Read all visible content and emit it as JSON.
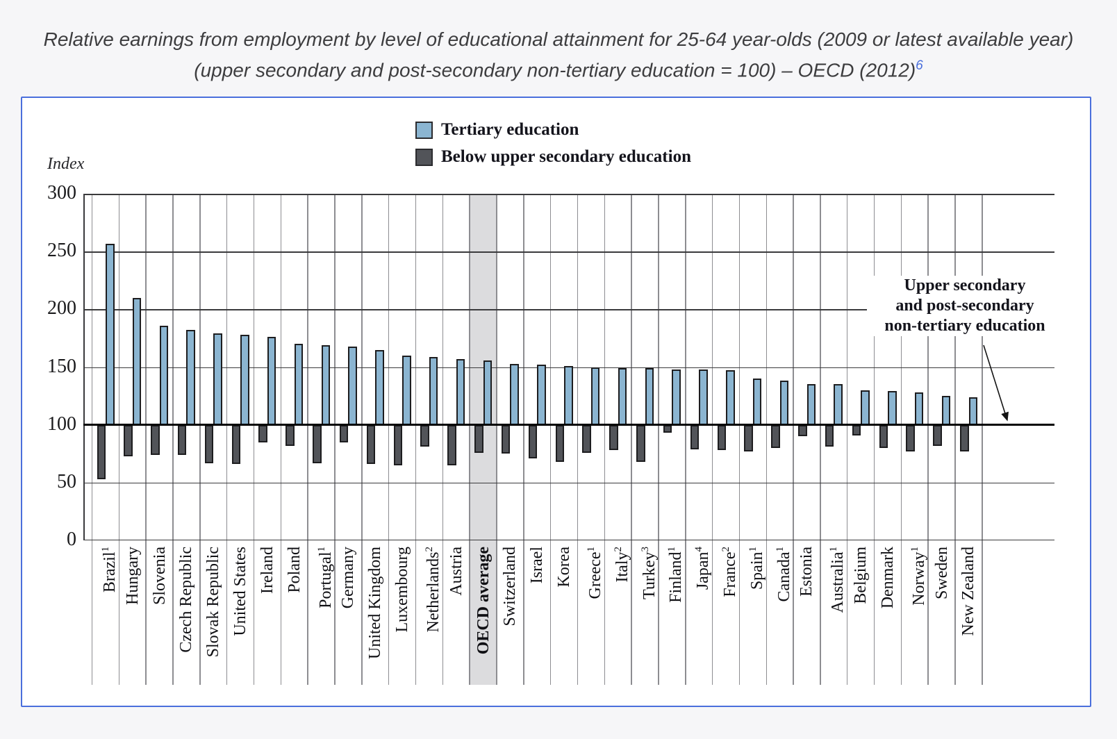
{
  "title": {
    "text": "Relative earnings from employment by level of educational attainment for 25-64 year-olds (2009 or latest available year) (upper secondary and post-secondary non-tertiary education = 100) – OECD (2012)",
    "footnote_marker": "6"
  },
  "chart": {
    "index_label": "Index",
    "legend": [
      {
        "id": "tertiary",
        "label": "Tertiary education"
      },
      {
        "id": "below-upper-secondary",
        "label": "Below upper secondary education"
      }
    ],
    "annotation": {
      "lines": [
        "Upper secondary",
        "and post-secondary",
        "non-tertiary education"
      ]
    }
  },
  "colors": {
    "tertiary_fill": "#8bb5d1",
    "below_fill": "#525459",
    "bar_border": "#1d1d1f",
    "highlight_band": "#dcdcde",
    "box_border": "#4a6fdc",
    "footnote_link": "#4a6fdc"
  },
  "chart_data": {
    "type": "bar",
    "title": "Relative earnings from employment by level of educational attainment, 25-64 year-olds (2009 or latest available year)",
    "ylabel": "Index",
    "ylim": [
      0,
      300
    ],
    "y_ticks": [
      300,
      250,
      200,
      150,
      100,
      50,
      0
    ],
    "baseline": 100,
    "baseline_meaning": "Upper secondary and post-secondary non-tertiary education = 100",
    "grid": true,
    "legend_position": "top-center",
    "highlight_category": "OECD average",
    "categories": [
      {
        "label": "Brazil",
        "sup": "1"
      },
      {
        "label": "Hungary",
        "sup": ""
      },
      {
        "label": "Slovenia",
        "sup": ""
      },
      {
        "label": "Czech Republic",
        "sup": ""
      },
      {
        "label": "Slovak Republic",
        "sup": ""
      },
      {
        "label": "United States",
        "sup": ""
      },
      {
        "label": "Ireland",
        "sup": ""
      },
      {
        "label": "Poland",
        "sup": ""
      },
      {
        "label": "Portugal",
        "sup": "1"
      },
      {
        "label": "Germany",
        "sup": ""
      },
      {
        "label": "United Kingdom",
        "sup": ""
      },
      {
        "label": "Luxembourg",
        "sup": ""
      },
      {
        "label": "Netherlands",
        "sup": "2"
      },
      {
        "label": "Austria",
        "sup": ""
      },
      {
        "label": "OECD average",
        "sup": ""
      },
      {
        "label": "Switzerland",
        "sup": ""
      },
      {
        "label": "Israel",
        "sup": ""
      },
      {
        "label": "Korea",
        "sup": ""
      },
      {
        "label": "Greece",
        "sup": "1"
      },
      {
        "label": "Italy",
        "sup": "2"
      },
      {
        "label": "Turkey",
        "sup": "3"
      },
      {
        "label": "Finland",
        "sup": "1"
      },
      {
        "label": "Japan",
        "sup": "4"
      },
      {
        "label": "France",
        "sup": "2"
      },
      {
        "label": "Spain",
        "sup": "1"
      },
      {
        "label": "Canada",
        "sup": "1"
      },
      {
        "label": "Estonia",
        "sup": ""
      },
      {
        "label": "Australia",
        "sup": "1"
      },
      {
        "label": "Belgium",
        "sup": ""
      },
      {
        "label": "Denmark",
        "sup": ""
      },
      {
        "label": "Norway",
        "sup": "1"
      },
      {
        "label": "Sweden",
        "sup": ""
      },
      {
        "label": "New Zealand",
        "sup": ""
      }
    ],
    "series": [
      {
        "name": "Tertiary education",
        "color": "#8bb5d1",
        "values": [
          257,
          210,
          186,
          182,
          179,
          178,
          176,
          170,
          169,
          168,
          165,
          160,
          159,
          157,
          156,
          153,
          152,
          151,
          150,
          149,
          149,
          148,
          148,
          147,
          140,
          138,
          135,
          135,
          130,
          129,
          128,
          125,
          124
        ]
      },
      {
        "name": "Below upper secondary education",
        "color": "#525459",
        "values": [
          53,
          73,
          74,
          74,
          67,
          66,
          85,
          82,
          67,
          85,
          66,
          65,
          81,
          65,
          76,
          75,
          71,
          68,
          76,
          78,
          68,
          93,
          79,
          78,
          77,
          80,
          90,
          81,
          91,
          80,
          77,
          82,
          77
        ]
      }
    ]
  }
}
